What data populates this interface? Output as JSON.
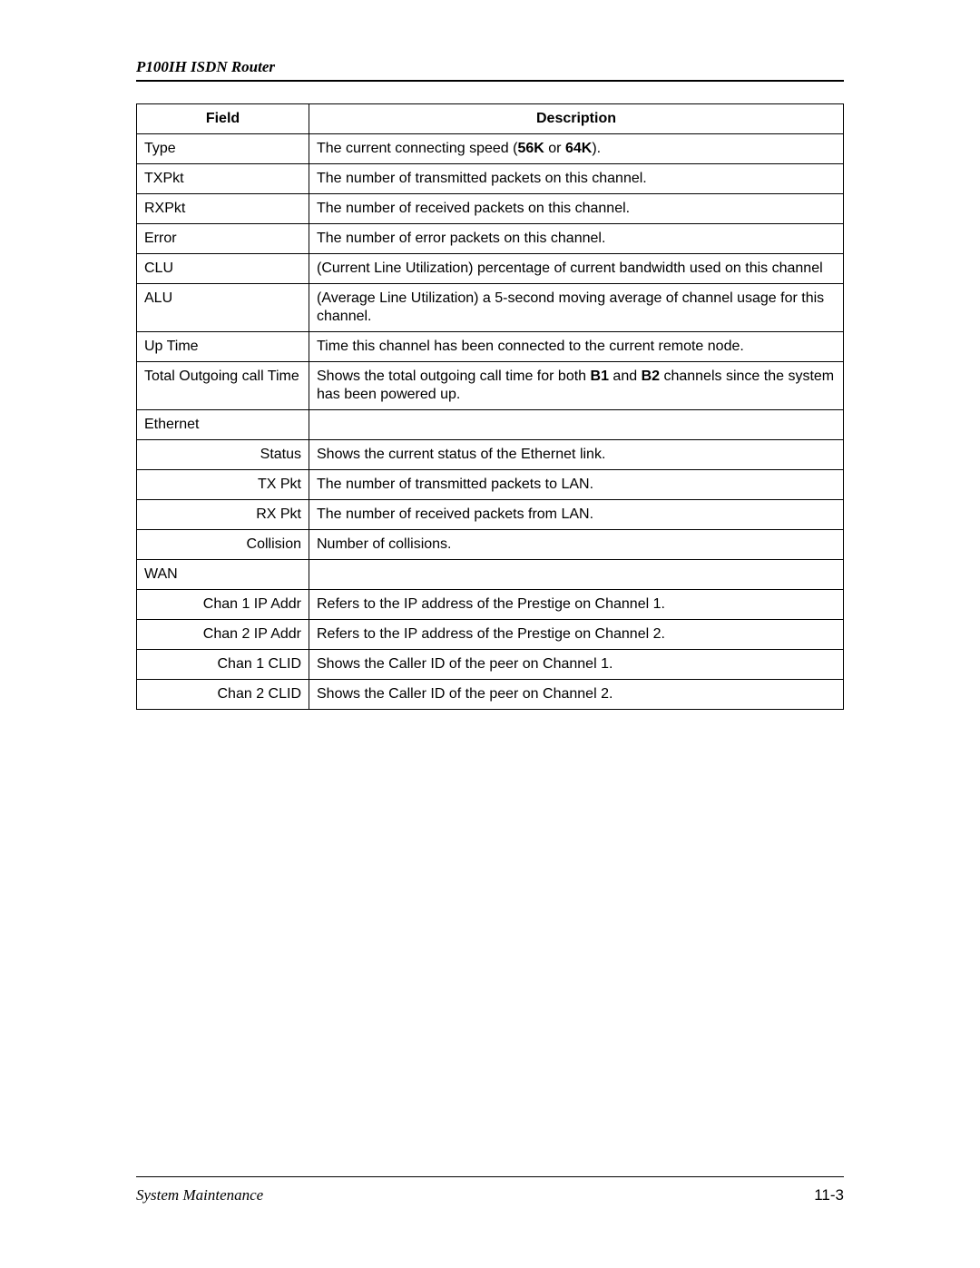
{
  "header": {
    "title": "P100IH ISDN Router"
  },
  "table": {
    "headers": {
      "field": "Field",
      "description": "Description"
    },
    "rows": [
      {
        "field": "Type",
        "align": "left",
        "desc_parts": [
          {
            "text": "The current connecting speed (",
            "bold": false
          },
          {
            "text": "56K",
            "bold": true
          },
          {
            "text": " or ",
            "bold": false
          },
          {
            "text": "64K",
            "bold": true
          },
          {
            "text": ").",
            "bold": false
          }
        ]
      },
      {
        "field": "TXPkt",
        "align": "left",
        "desc_parts": [
          {
            "text": "The number of transmitted packets on this channel.",
            "bold": false
          }
        ]
      },
      {
        "field": "RXPkt",
        "align": "left",
        "desc_parts": [
          {
            "text": "The number of received packets on this channel.",
            "bold": false
          }
        ]
      },
      {
        "field": "Error",
        "align": "left",
        "desc_parts": [
          {
            "text": "The number of error packets on this channel.",
            "bold": false
          }
        ]
      },
      {
        "field": "CLU",
        "align": "left",
        "desc_parts": [
          {
            "text": "(Current Line Utilization) percentage of current bandwidth used on this channel",
            "bold": false
          }
        ]
      },
      {
        "field": "ALU",
        "align": "left",
        "desc_parts": [
          {
            "text": "(Average Line Utilization) a 5-second moving average of channel usage for this channel.",
            "bold": false
          }
        ]
      },
      {
        "field": "Up Time",
        "align": "left",
        "desc_parts": [
          {
            "text": "Time this channel has been connected to the current remote node.",
            "bold": false
          }
        ]
      },
      {
        "field": "Total Outgoing call Time",
        "align": "left",
        "desc_parts": [
          {
            "text": "Shows the total outgoing call time for both ",
            "bold": false
          },
          {
            "text": "B1",
            "bold": true
          },
          {
            "text": " and ",
            "bold": false
          },
          {
            "text": "B2",
            "bold": true
          },
          {
            "text": " channels since the system has been powered up.",
            "bold": false
          }
        ]
      },
      {
        "field": "Ethernet",
        "align": "left",
        "desc_parts": []
      },
      {
        "field": "Status",
        "align": "right",
        "desc_parts": [
          {
            "text": "Shows the current status of the Ethernet link.",
            "bold": false
          }
        ]
      },
      {
        "field": "TX Pkt",
        "align": "right",
        "desc_parts": [
          {
            "text": "The number of transmitted packets to LAN.",
            "bold": false
          }
        ]
      },
      {
        "field": "RX Pkt",
        "align": "right",
        "desc_parts": [
          {
            "text": "The number of received packets from LAN.",
            "bold": false
          }
        ]
      },
      {
        "field": "Collision",
        "align": "right",
        "desc_parts": [
          {
            "text": "Number of collisions.",
            "bold": false
          }
        ]
      },
      {
        "field": "WAN",
        "align": "left",
        "desc_parts": []
      },
      {
        "field": "Chan 1 IP Addr",
        "align": "right",
        "desc_parts": [
          {
            "text": "Refers to the IP address of the Prestige on Channel 1.",
            "bold": false
          }
        ]
      },
      {
        "field": "Chan 2 IP Addr",
        "align": "right",
        "desc_parts": [
          {
            "text": "Refers to the IP address of the Prestige on Channel 2.",
            "bold": false
          }
        ]
      },
      {
        "field": "Chan 1 CLID",
        "align": "right",
        "desc_parts": [
          {
            "text": "Shows the Caller ID of the peer on Channel 1.",
            "bold": false
          }
        ]
      },
      {
        "field": "Chan 2 CLID",
        "align": "right",
        "desc_parts": [
          {
            "text": "Shows the Caller ID of the peer on Channel 2.",
            "bold": false
          }
        ]
      }
    ]
  },
  "footer": {
    "left": "System Maintenance",
    "right": "11-3"
  }
}
